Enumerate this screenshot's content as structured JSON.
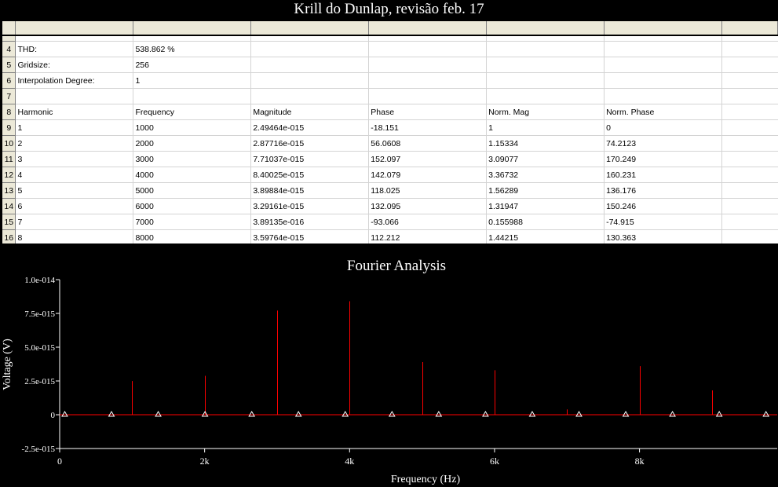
{
  "window": {
    "title": "Krill do Dunlap, revisão feb. 17"
  },
  "sheet": {
    "meta_rows": [
      {
        "row": "4",
        "label": "THD:",
        "value": "538.862 %"
      },
      {
        "row": "5",
        "label": "Gridsize:",
        "value": "256"
      },
      {
        "row": "6",
        "label": "Interpolation Degree:",
        "value": "1"
      },
      {
        "row": "7",
        "label": "",
        "value": ""
      }
    ],
    "header_row": {
      "row": "8",
      "cells": [
        "Harmonic",
        "Frequency",
        "Magnitude",
        "Phase",
        "Norm. Mag",
        "Norm. Phase"
      ]
    },
    "data_rows": [
      {
        "row": "9",
        "cells": [
          "1",
          "1000",
          "2.49464e-015",
          "-18.151",
          "1",
          "0"
        ]
      },
      {
        "row": "10",
        "cells": [
          "2",
          "2000",
          "2.87716e-015",
          "56.0608",
          "1.15334",
          "74.2123"
        ]
      },
      {
        "row": "11",
        "cells": [
          "3",
          "3000",
          "7.71037e-015",
          "152.097",
          "3.09077",
          "170.249"
        ]
      },
      {
        "row": "12",
        "cells": [
          "4",
          "4000",
          "8.40025e-015",
          "142.079",
          "3.36732",
          "160.231"
        ]
      },
      {
        "row": "13",
        "cells": [
          "5",
          "5000",
          "3.89884e-015",
          "118.025",
          "1.56289",
          "136.176"
        ]
      },
      {
        "row": "14",
        "cells": [
          "6",
          "6000",
          "3.29161e-015",
          "132.095",
          "1.31947",
          "150.246"
        ]
      },
      {
        "row": "15",
        "cells": [
          "7",
          "7000",
          "3.89135e-016",
          "-93.066",
          "0.155988",
          "-74.915"
        ]
      },
      {
        "row": "16",
        "cells": [
          "8",
          "8000",
          "3.59764e-015",
          "112.212",
          "1.44215",
          "130.363"
        ]
      }
    ]
  },
  "chart_data": {
    "type": "bar",
    "title": "Fourier Analysis",
    "xlabel": "Frequency (Hz)",
    "ylabel": "Voltage (V)",
    "xlim": [
      0,
      9900
    ],
    "ylim": [
      -2.5e-15,
      1e-14
    ],
    "x_ticks": [
      {
        "value": 0,
        "label": "0"
      },
      {
        "value": 2000,
        "label": "2k"
      },
      {
        "value": 4000,
        "label": "4k"
      },
      {
        "value": 6000,
        "label": "6k"
      },
      {
        "value": 8000,
        "label": "8k"
      }
    ],
    "y_ticks": [
      {
        "value": -2.5e-15,
        "label": "-2.5e-015"
      },
      {
        "value": 0,
        "label": "0"
      },
      {
        "value": 2.5e-15,
        "label": "2.5e-015"
      },
      {
        "value": 5e-15,
        "label": "5.0e-015"
      },
      {
        "value": 7.5e-15,
        "label": "7.5e-015"
      },
      {
        "value": 1e-14,
        "label": "1.0e-014"
      }
    ],
    "series": [
      {
        "color": "#ff0000",
        "x": [
          1000,
          2000,
          3000,
          4000,
          5000,
          6000,
          7000,
          8000,
          9000
        ],
        "values": [
          2.49464e-15,
          2.87716e-15,
          7.71037e-15,
          8.40025e-15,
          3.89884e-15,
          3.29161e-15,
          3.89135e-16,
          3.59764e-15,
          1.8e-15
        ]
      }
    ],
    "zero_markers": [
      70,
      715,
      1360,
      2005,
      2650,
      3295,
      3940,
      4585,
      5230,
      5875,
      6520,
      7165,
      7810,
      8455,
      9100,
      9745
    ],
    "colors": {
      "background": "#000000",
      "axis": "#ffffff",
      "baseline": "#ff0000",
      "marker": "#ffffff"
    }
  }
}
